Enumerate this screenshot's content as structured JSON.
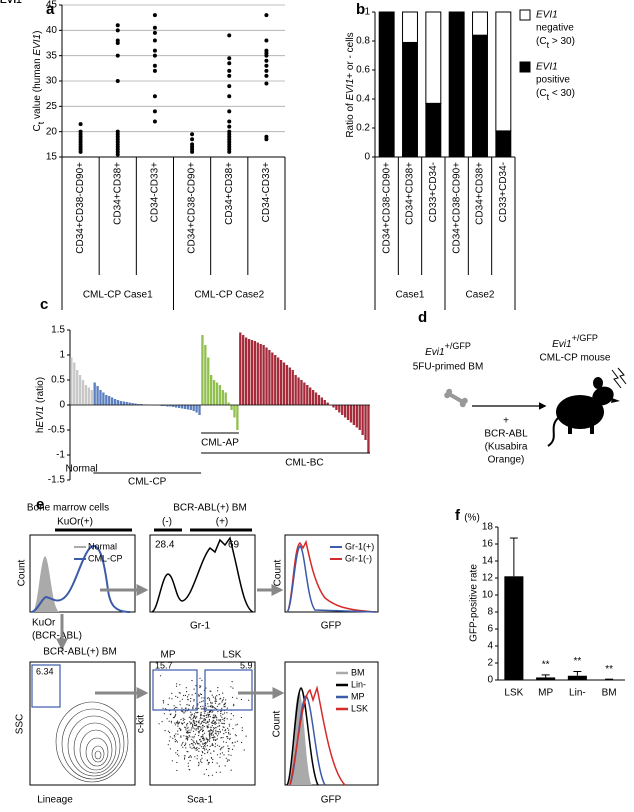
{
  "panel_labels": [
    "a",
    "b",
    "c",
    "d",
    "e",
    "f"
  ],
  "chart_data": [
    {
      "type": "strip",
      "y_label": [
        "C",
        "t",
        " value (human ",
        "EVI1",
        ")"
      ],
      "categories": [
        "CD34+CD38-CD90+",
        "CD34+CD38+",
        "CD34-CD33+",
        "CD34+CD38-CD90+",
        "CD34+CD38+",
        "CD34-CD33+"
      ],
      "groups": [
        "CML-CP Case1",
        "CML-CP Case2"
      ],
      "values": [
        [
          21.5,
          20,
          19.5,
          19,
          18.5,
          18,
          17.5,
          17,
          16.5,
          16
        ],
        [
          41,
          40,
          38,
          37.5,
          35,
          30,
          20,
          19.5,
          19,
          18.5,
          18,
          17.5,
          17,
          16.5,
          16,
          15.5
        ],
        [
          43,
          40.5,
          39.5,
          38,
          36,
          35,
          33,
          32,
          27,
          24,
          22
        ],
        [
          19.5,
          18.5,
          17.5,
          17,
          16.5,
          16
        ],
        [
          39,
          34.5,
          33.5,
          32,
          31,
          29,
          27,
          24,
          22,
          21,
          20,
          19.5,
          19,
          18.5,
          18,
          17.5,
          17,
          16.5,
          16
        ],
        [
          43,
          38,
          36,
          35.5,
          35,
          34,
          33,
          32,
          31,
          29.5,
          19,
          18.5
        ]
      ],
      "color": "#000000",
      "ylim": [
        15,
        45
      ],
      "yticks": [
        15,
        20,
        25,
        30,
        35,
        40,
        45
      ],
      "grid": true
    },
    {
      "type": "stacked_bar",
      "y_label": [
        "Ratio of ",
        "EVI1",
        "+ or - cells"
      ],
      "categories": [
        "CD34+CD38-CD90+",
        "CD34+CD38+",
        "CD33+CD34-",
        "CD34+CD38-CD90+",
        "CD34+CD38+",
        "CD33+CD34-"
      ],
      "groups": [
        "Case1",
        "Case2"
      ],
      "series": [
        {
          "name": [
            "EVI1",
            "positive"
          ],
          "note": [
            "(C",
            "t",
            " < 30)"
          ],
          "color": "#000000",
          "values": [
            1,
            0.79,
            0.37,
            1,
            0.84,
            0.18
          ]
        },
        {
          "name": [
            "EVI1",
            "negative"
          ],
          "note": [
            "(C",
            "t",
            " > 30)"
          ],
          "color": "#ffffff",
          "values": [
            0,
            0.21,
            0.63,
            0,
            0.16,
            0.82
          ]
        }
      ],
      "ylim": [
        0,
        1
      ],
      "yticks": [
        0,
        0.2,
        0.4,
        0.6,
        0.8,
        1
      ],
      "grid": false
    },
    {
      "type": "bar",
      "y_label": [
        "h",
        "EVI1",
        " (ratio)"
      ],
      "groups": [
        {
          "name": "Normal",
          "color": "#c8c8c8",
          "values": [
            0.95,
            0.85,
            0.7,
            0.6,
            0.5,
            0.4,
            0.35,
            0.3
          ]
        },
        {
          "name": "CML-CP",
          "color": "#5b7fbf",
          "values": [
            0.45,
            0.38,
            0.3,
            0.25,
            0.2,
            0.18,
            0.15,
            0.12,
            0.1,
            0.08,
            0.07,
            0.06,
            0.05,
            0.04,
            0.03,
            0.02,
            0.02,
            0.01,
            0.01,
            0,
            0,
            -0.01,
            -0.01,
            -0.02,
            -0.02,
            -0.03,
            -0.03,
            -0.04,
            -0.05,
            -0.06,
            -0.07,
            -0.08,
            -0.09,
            -0.1,
            -0.12,
            -0.15,
            -0.2
          ]
        },
        {
          "name": "CML-AP",
          "color": "#92c050",
          "values": [
            1.4,
            1.2,
            0.95,
            0.6,
            0.5,
            0.45,
            0.4,
            0.3,
            0.25,
            0.05,
            -0.1,
            -0.25,
            -0.5
          ]
        },
        {
          "name": "CML-BC",
          "color": "#a52a3a",
          "values": [
            1.45,
            1.4,
            1.35,
            1.32,
            1.3,
            1.28,
            1.25,
            1.22,
            1.2,
            1.15,
            1.1,
            1.05,
            1.0,
            0.95,
            0.9,
            0.85,
            0.8,
            0.75,
            0.7,
            0.6,
            0.55,
            0.5,
            0.45,
            0.4,
            0.35,
            0.3,
            0.25,
            0.2,
            0.15,
            0.1,
            0.05,
            0,
            -0.05,
            -0.1,
            -0.15,
            -0.2,
            -0.25,
            -0.3,
            -0.35,
            -0.4,
            -0.45,
            -0.5,
            -0.6,
            -0.7,
            -0.95
          ]
        }
      ],
      "ylim": [
        -1.5,
        1.5
      ],
      "yticks": [
        -1.5,
        -1,
        -0.5,
        0,
        0.5,
        1,
        1.5
      ],
      "grid": false
    },
    {
      "type": "bar_error",
      "unit_label": "(%)",
      "y_label": "GFP-positive rate",
      "categories": [
        "LSK",
        "MP",
        "Lin-",
        "BM"
      ],
      "values": [
        12.2,
        0.3,
        0.5,
        0.05
      ],
      "errors": [
        4.5,
        0.3,
        0.5,
        0.05
      ],
      "annotations": [
        null,
        "**",
        "**",
        "**"
      ],
      "color": "#000000",
      "ylim": [
        0,
        18
      ],
      "yticks": [
        0,
        2,
        4,
        6,
        8,
        10,
        12,
        14,
        16,
        18
      ],
      "grid": false
    }
  ],
  "diagrams": {
    "d": {
      "source_genotype": [
        "Evi1",
        "+/GFP"
      ],
      "source": "5FU-primed BM",
      "plus": "+",
      "vector": [
        "BCR-ABL",
        "(Kusabira",
        "Orange)"
      ],
      "result_genotype": [
        "Evi1",
        "+/GFP"
      ],
      "result": "CML-CP mouse"
    },
    "e": {
      "bm_title": "Bone marrow cells",
      "kuor_gate": "KuOr(+)",
      "legend1": [
        "Normal",
        "CML-CP"
      ],
      "count": "Count",
      "kuor_axis": [
        "KuOr",
        "(BCR-ABL)"
      ],
      "gr1_title": "BCR-ABL(+) BM",
      "gr1_gates": [
        "(-)",
        "(+)"
      ],
      "gr1_pcts": [
        28.4,
        69
      ],
      "gr1_axis": "Gr-1",
      "legend3": [
        "Gr-1(+)",
        "Gr-1(-)"
      ],
      "gfp_axis": "GFP",
      "lin_title": "BCR-ABL(+) BM",
      "lin_pct": 6.34,
      "ssc": "SSC",
      "lineage": "Lineage",
      "gates5": [
        "MP",
        "LSK"
      ],
      "pcts5": [
        15.7,
        5.9
      ],
      "ckit": "c-kit",
      "sca1": "Sca-1",
      "legend6": [
        "BM",
        "Lin-",
        "MP",
        "LSK"
      ]
    }
  }
}
